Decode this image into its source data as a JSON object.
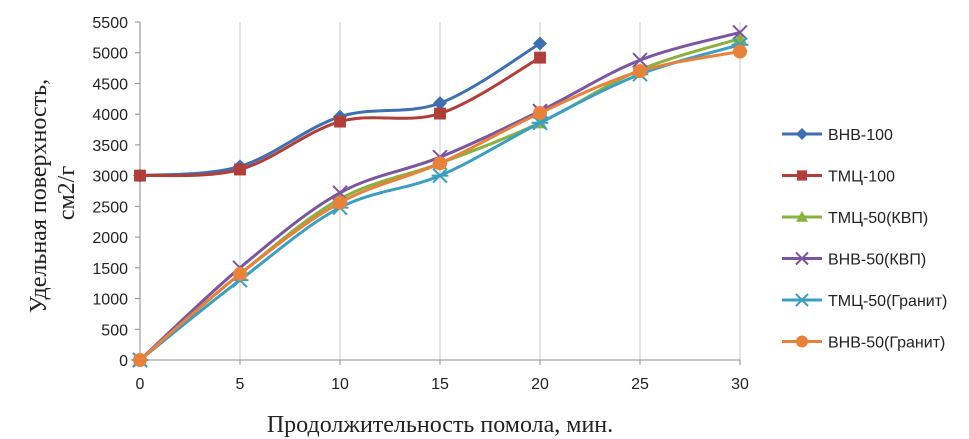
{
  "chart_data": {
    "type": "line",
    "xlabel": "Продолжительность помола, мин.",
    "ylabel_lines": [
      "Удельная поверхность,",
      "см2/г"
    ],
    "x": [
      0,
      5,
      10,
      15,
      20,
      25,
      30
    ],
    "x_ticks": [
      "0",
      "5",
      "10",
      "15",
      "20",
      "25",
      "30"
    ],
    "xlim": [
      0,
      30
    ],
    "ylim": [
      0,
      5500
    ],
    "y_ticks": [
      "0",
      "500",
      "1000",
      "1500",
      "2000",
      "2500",
      "3000",
      "3500",
      "4000",
      "4500",
      "5000",
      "5500"
    ],
    "grid": "vertical",
    "smooth": true,
    "legend_position": "right",
    "series": [
      {
        "name": "ВНВ-100",
        "color": "#3e6fb0",
        "marker": "diamond",
        "x": [
          0,
          5,
          10,
          15,
          20
        ],
        "values": [
          3000,
          3150,
          3960,
          4180,
          5150
        ]
      },
      {
        "name": "ТМЦ-100",
        "color": "#b03f3a",
        "marker": "square",
        "x": [
          0,
          5,
          10,
          15,
          20
        ],
        "values": [
          3000,
          3100,
          3880,
          4010,
          4920
        ]
      },
      {
        "name": "ТМЦ-50(КВП)",
        "color": "#8ab040",
        "marker": "triangle",
        "x": [
          0,
          5,
          10,
          15,
          20,
          25,
          30
        ],
        "values": [
          0,
          1400,
          2620,
          3200,
          3860,
          4720,
          5230
        ]
      },
      {
        "name": "ВНВ-50(КВП)",
        "color": "#7a56a0",
        "marker": "x",
        "x": [
          0,
          5,
          10,
          15,
          20,
          25,
          30
        ],
        "values": [
          0,
          1500,
          2720,
          3300,
          4050,
          4880,
          5330
        ]
      },
      {
        "name": "ТМЦ-50(Гранит)",
        "color": "#3a9fc0",
        "marker": "asterisk",
        "x": [
          0,
          5,
          10,
          15,
          20,
          25,
          30
        ],
        "values": [
          0,
          1300,
          2480,
          3000,
          3860,
          4650,
          5130
        ]
      },
      {
        "name": "ВНВ-50(Гранит)",
        "color": "#e8823a",
        "marker": "circle",
        "x": [
          0,
          5,
          10,
          15,
          20,
          25,
          30
        ],
        "values": [
          0,
          1400,
          2560,
          3200,
          4020,
          4700,
          5020
        ]
      }
    ]
  }
}
